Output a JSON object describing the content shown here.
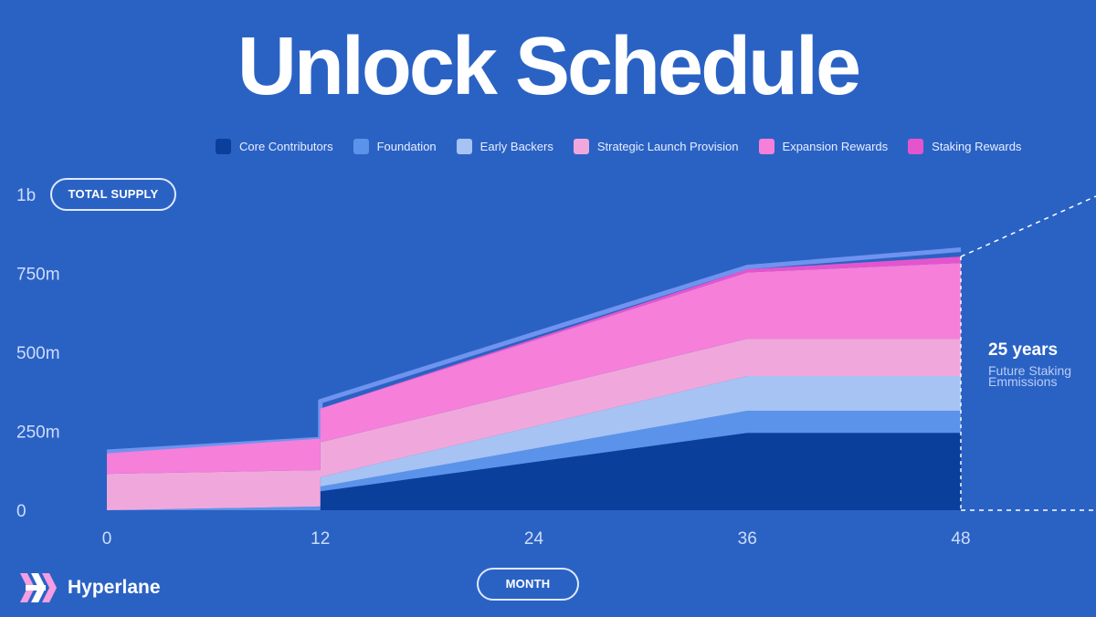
{
  "title": "Unlock Schedule",
  "brand": {
    "name": "Hyperlane",
    "logo_icon": "hyperlane-logo-icon"
  },
  "buttons": {
    "total_supply": "TOTAL SUPPLY",
    "month": "MONTH"
  },
  "chart_data": {
    "type": "area",
    "stacked": true,
    "title": "Unlock Schedule",
    "xlabel": "MONTH",
    "ylabel": "TOTAL SUPPLY",
    "x_ticks": [
      "0",
      "12",
      "24",
      "36",
      "48"
    ],
    "y_ticks": [
      "0",
      "250m",
      "500m",
      "750m",
      "1b"
    ],
    "xlim": [
      0,
      48
    ],
    "ylim": [
      0,
      1000
    ],
    "units": "millions of tokens",
    "legend_position": "top",
    "series": [
      {
        "name": "Core Contributors",
        "color": "#0b3f9c",
        "points": [
          [
            0,
            0
          ],
          [
            12,
            0
          ],
          [
            12,
            60
          ],
          [
            36,
            245
          ],
          [
            48,
            245
          ]
        ]
      },
      {
        "name": "Foundation",
        "color": "#5b93ea",
        "points": [
          [
            0,
            0
          ],
          [
            12,
            12
          ],
          [
            12,
            15
          ],
          [
            36,
            70
          ],
          [
            48,
            70
          ]
        ]
      },
      {
        "name": "Early Backers",
        "color": "#a6c3f3",
        "points": [
          [
            0,
            0
          ],
          [
            12,
            0
          ],
          [
            12,
            30
          ],
          [
            36,
            110
          ],
          [
            48,
            110
          ]
        ]
      },
      {
        "name": "Strategic Launch Provision",
        "color": "#f0a8dc",
        "points": [
          [
            0,
            115
          ],
          [
            12,
            115
          ],
          [
            12,
            110
          ],
          [
            36,
            118
          ],
          [
            48,
            118
          ]
        ]
      },
      {
        "name": "Expansion Rewards",
        "color": "#f57fd9",
        "points": [
          [
            0,
            65
          ],
          [
            12,
            100
          ],
          [
            12,
            107
          ],
          [
            36,
            210
          ],
          [
            48,
            240
          ]
        ]
      },
      {
        "name": "Staking Rewards",
        "color": "#e455cd",
        "points": [
          [
            0,
            0
          ],
          [
            12,
            0
          ],
          [
            12,
            0
          ],
          [
            36,
            10
          ],
          [
            48,
            20
          ]
        ]
      }
    ],
    "total_line": {
      "color": "#6f93ef",
      "points": [
        [
          0,
          185
        ],
        [
          12,
          225
        ],
        [
          12,
          345
        ],
        [
          36,
          770
        ],
        [
          48,
          825
        ]
      ]
    },
    "annotation": {
      "title": "25 years",
      "subtitle_line1": "Future Staking",
      "subtitle_line2": "Emmissions"
    }
  }
}
